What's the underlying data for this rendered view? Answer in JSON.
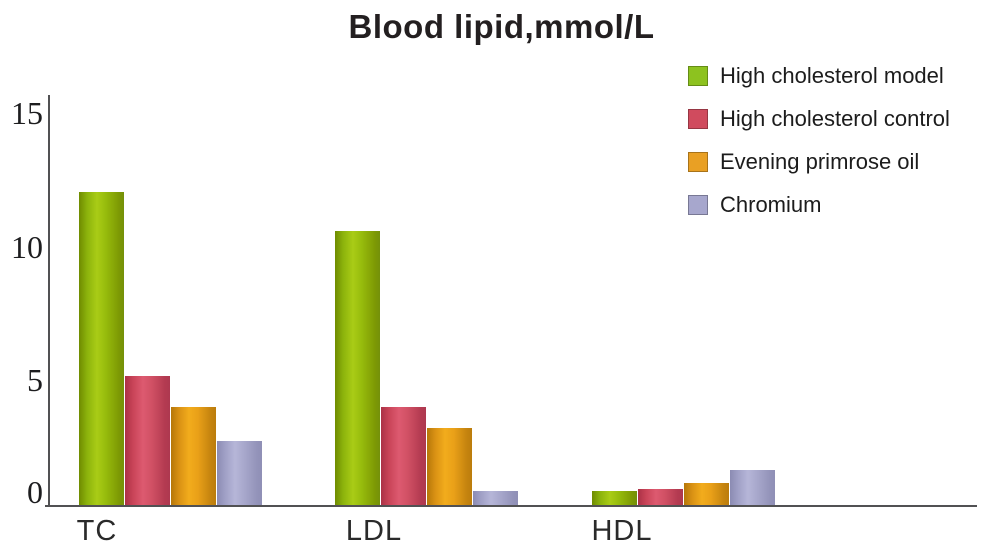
{
  "title": "Blood lipid,mmol/L",
  "chart_data": {
    "type": "bar",
    "title": "Blood lipid,mmol/L",
    "xlabel": "",
    "ylabel": "mmol/L",
    "categories": [
      "TC",
      "LDL",
      "HDL"
    ],
    "series": [
      {
        "name": "High cholesterol model",
        "color": "#8dc21f",
        "values": [
          12.0,
          10.5,
          0.6
        ]
      },
      {
        "name": "High cholesterol control",
        "color": "#d04b5e",
        "values": [
          5.0,
          3.8,
          0.7
        ]
      },
      {
        "name": "Evening primrose oil",
        "color": "#e9a024",
        "values": [
          3.8,
          3.0,
          0.9
        ]
      },
      {
        "name": "Chromium",
        "color": "#a7a7cd",
        "values": [
          2.5,
          0.6,
          1.4
        ]
      }
    ],
    "y_ticks": [
      15,
      10,
      5,
      0
    ],
    "ylim": [
      0,
      15
    ],
    "grid": false,
    "legend_position": "top-right"
  }
}
